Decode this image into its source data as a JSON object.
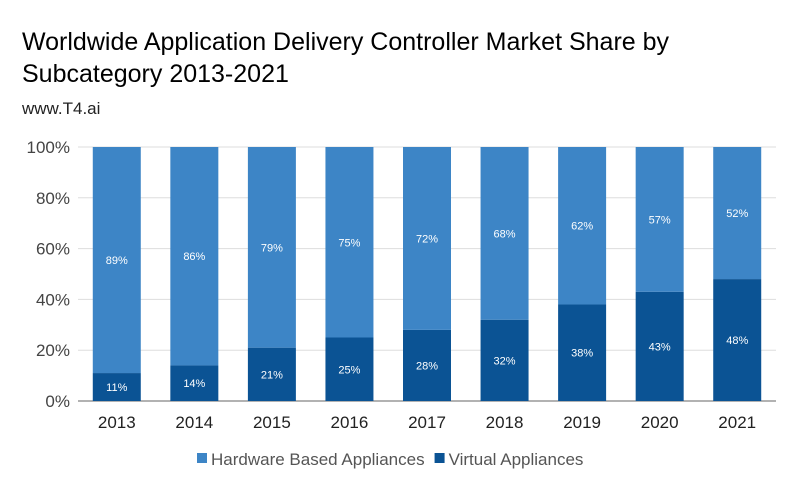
{
  "chart_data": {
    "type": "bar",
    "stacked": true,
    "title_lines": [
      "Worldwide Application Delivery Controller Market Share by",
      "Subcategory 2013-2021"
    ],
    "subtitle": "www.T4.ai",
    "categories": [
      "2013",
      "2014",
      "2015",
      "2016",
      "2017",
      "2018",
      "2019",
      "2020",
      "2021"
    ],
    "series": [
      {
        "name": "Virtual Appliances",
        "color": "#0b5394",
        "values": [
          11,
          14,
          21,
          25,
          28,
          32,
          38,
          43,
          48
        ]
      },
      {
        "name": "Hardware Based Appliances",
        "color": "#3d85c6",
        "values": [
          89,
          86,
          79,
          75,
          72,
          68,
          62,
          57,
          52
        ]
      }
    ],
    "legend_order": [
      "Hardware Based Appliances",
      "Virtual Appliances"
    ],
    "yticks": [
      "0%",
      "20%",
      "40%",
      "60%",
      "80%",
      "100%"
    ],
    "ylim": [
      0,
      100
    ],
    "grid": true,
    "legend_position": "bottom"
  }
}
